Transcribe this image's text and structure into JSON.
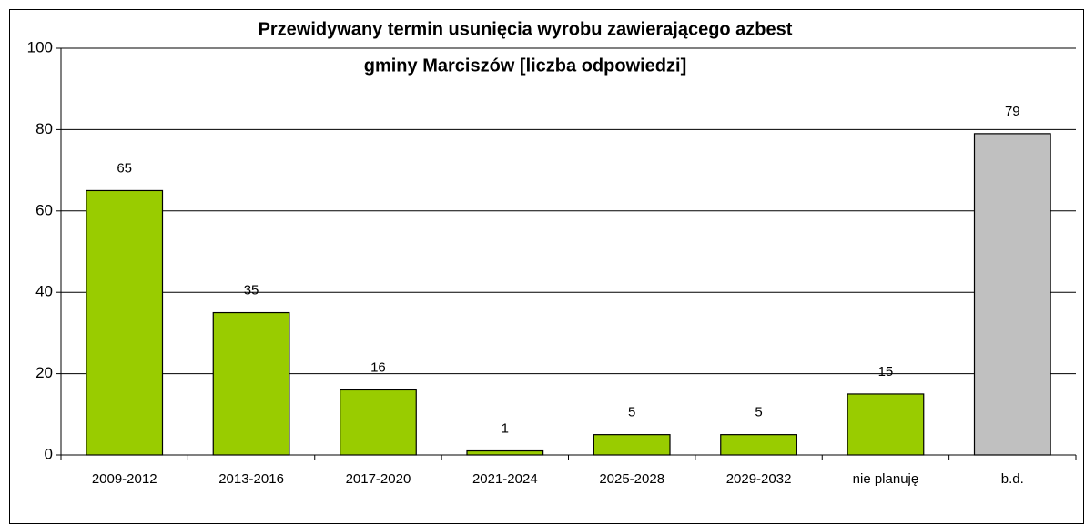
{
  "chart_data": {
    "type": "bar",
    "title": [
      "Przewidywany termin usunięcia wyrobu zawierającego azbest",
      "gminy Marciszów [liczba odpowiedzi]"
    ],
    "categories": [
      "2009-2012",
      "2013-2016",
      "2017-2020",
      "2021-2024",
      "2025-2028",
      "2029-2032",
      "nie planuję",
      "b.d."
    ],
    "values": [
      65,
      35,
      16,
      1,
      5,
      5,
      15,
      79
    ],
    "colors": [
      "#99cc00",
      "#99cc00",
      "#99cc00",
      "#99cc00",
      "#99cc00",
      "#99cc00",
      "#99cc00",
      "#c0c0c0"
    ],
    "ylim": [
      0,
      100
    ],
    "yticks": [
      0,
      20,
      40,
      60,
      80,
      100
    ],
    "grid": true
  }
}
